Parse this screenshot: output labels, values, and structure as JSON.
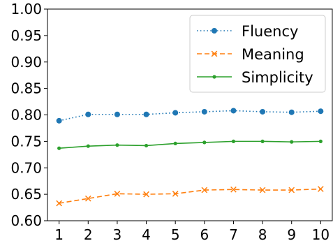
{
  "chart_data": {
    "type": "line",
    "x": [
      1,
      2,
      3,
      4,
      5,
      6,
      7,
      8,
      9,
      10
    ],
    "xlim": [
      0.6,
      10.4
    ],
    "ylim": [
      0.6,
      1.0
    ],
    "xticks": [
      "1",
      "2",
      "3",
      "4",
      "5",
      "6",
      "7",
      "8",
      "9",
      "10"
    ],
    "yticks": [
      "0.60",
      "0.65",
      "0.70",
      "0.75",
      "0.80",
      "0.85",
      "0.90",
      "0.95",
      "1.00"
    ],
    "grid": false,
    "legend_position": "top-right",
    "series": [
      {
        "name": "Fluency",
        "values": [
          0.789,
          0.801,
          0.801,
          0.801,
          0.804,
          0.806,
          0.808,
          0.806,
          0.805,
          0.807
        ],
        "color": "#1f77b4",
        "line_style": "dotted",
        "marker": "circle"
      },
      {
        "name": "Meaning",
        "values": [
          0.633,
          0.642,
          0.651,
          0.65,
          0.651,
          0.658,
          0.659,
          0.658,
          0.658,
          0.66
        ],
        "color": "#ff7f0e",
        "line_style": "dashed",
        "marker": "x"
      },
      {
        "name": "Simplicity",
        "values": [
          0.737,
          0.741,
          0.743,
          0.742,
          0.746,
          0.748,
          0.75,
          0.75,
          0.749,
          0.75
        ],
        "color": "#2ca02c",
        "line_style": "solid",
        "marker": "point"
      }
    ]
  }
}
